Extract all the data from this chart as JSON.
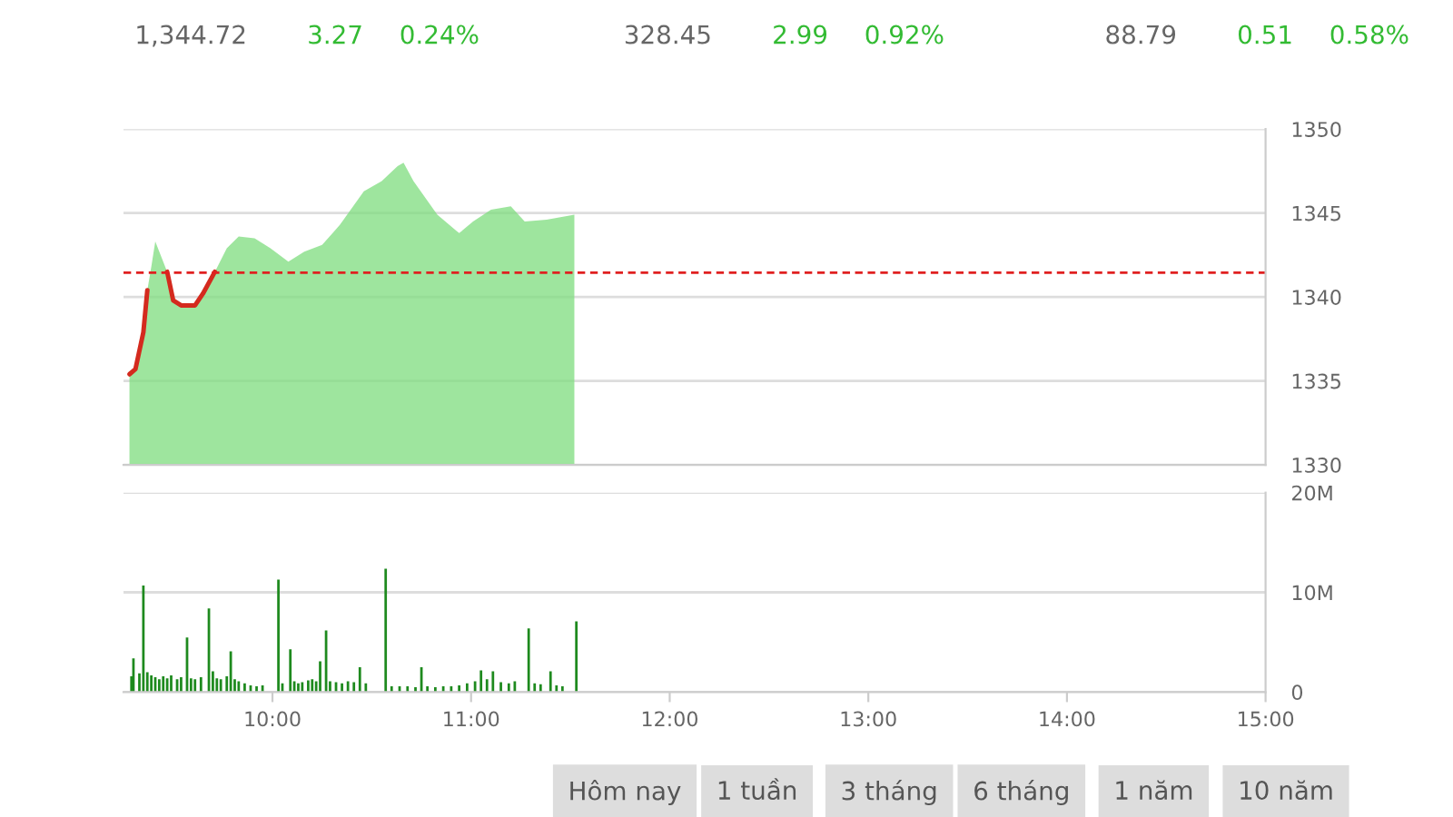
{
  "chart_data": [
    {
      "type": "area",
      "xlim": [
        9.25,
        15
      ],
      "ylim": [
        1330,
        1350
      ],
      "yticks": [
        1330,
        1335,
        1340,
        1345,
        1350
      ],
      "tick_labels": "y",
      "grid": "y",
      "legend": false,
      "x": [
        9.28,
        9.31,
        9.35,
        9.37,
        9.39,
        9.41,
        9.44,
        9.47,
        9.5,
        9.54,
        9.61,
        9.65,
        9.71,
        9.77,
        9.83,
        9.91,
        9.99,
        10.08,
        10.16,
        10.25,
        10.34,
        10.46,
        10.55,
        10.63,
        10.66,
        10.71,
        10.83,
        10.94,
        11.01,
        11.1,
        11.2,
        11.27,
        11.38,
        11.52
      ],
      "series": [
        {
          "type": "area",
          "color": "#7ddc7d",
          "values": [
            1335.4,
            1335.7,
            1337.9,
            1340.4,
            1341.8,
            1343.3,
            1342.4,
            1341.5,
            1339.8,
            1339.5,
            1339.5,
            1340.2,
            1341.5,
            1342.9,
            1343.6,
            1343.5,
            1342.9,
            1342.1,
            1342.7,
            1343.1,
            1344.3,
            1346.3,
            1346.9,
            1347.8,
            1348.0,
            1346.9,
            1344.9,
            1343.8,
            1344.5,
            1345.2,
            1345.4,
            1344.5,
            1344.6,
            1344.9
          ]
        },
        {
          "type": "line",
          "color": "#d42a1e",
          "values": [
            1335.4,
            1335.7,
            1337.9,
            1340.4,
            null,
            null,
            null,
            1341.5,
            1339.8,
            1339.5,
            1339.5,
            1340.2,
            1341.5,
            null,
            null,
            null,
            null,
            null,
            null,
            null,
            null,
            null,
            null,
            null,
            null,
            null,
            null,
            null,
            null,
            null,
            null,
            null,
            null,
            null
          ]
        }
      ],
      "ref_lines": [
        {
          "axis": "y",
          "value": 1341.45,
          "color": "#e02020",
          "line_style": "dashed"
        }
      ],
      "annotations": [
        "1,344.72",
        "3.27",
        "0.24%",
        "328.45",
        "2.99",
        "0.92%",
        "88.79",
        "0.51",
        "0.58%"
      ]
    },
    {
      "type": "bar",
      "xlim": [
        9.25,
        15
      ],
      "ylim": [
        0,
        20
      ],
      "grid": "y",
      "legend": false,
      "xticks": [
        {
          "value": 10,
          "label": "10:00"
        },
        {
          "value": 11,
          "label": "11:00"
        },
        {
          "value": 12,
          "label": "12:00"
        },
        {
          "value": 13,
          "label": "13:00"
        },
        {
          "value": 14,
          "label": "14:00"
        },
        {
          "value": 15,
          "label": "15:00"
        }
      ],
      "yticks": [
        0,
        {
          "value": 10,
          "label": "10M"
        },
        {
          "value": 20,
          "label": "20M"
        }
      ],
      "x": [
        9.29,
        9.3,
        9.33,
        9.35,
        9.37,
        9.39,
        9.41,
        9.43,
        9.45,
        9.47,
        9.49,
        9.52,
        9.54,
        9.57,
        9.59,
        9.61,
        9.64,
        9.68,
        9.7,
        9.72,
        9.74,
        9.77,
        9.79,
        9.81,
        9.83,
        9.86,
        9.89,
        9.92,
        9.95,
        10.03,
        10.05,
        10.09,
        10.11,
        10.13,
        10.15,
        10.18,
        10.2,
        10.22,
        10.24,
        10.27,
        10.29,
        10.32,
        10.35,
        10.38,
        10.41,
        10.44,
        10.47,
        10.57,
        10.6,
        10.64,
        10.68,
        10.72,
        10.75,
        10.78,
        10.82,
        10.86,
        10.9,
        10.94,
        10.98,
        11.02,
        11.05,
        11.08,
        11.11,
        11.15,
        11.19,
        11.22,
        11.29,
        11.32,
        11.35,
        11.4,
        11.43,
        11.46,
        11.53
      ],
      "series": [
        {
          "color": "#1e8a1e",
          "values": [
            1.5,
            3.3,
            1.8,
            10.6,
            1.9,
            1.6,
            1.4,
            1.2,
            1.5,
            1.3,
            1.6,
            1.2,
            1.4,
            5.4,
            1.3,
            1.2,
            1.4,
            8.3,
            2.0,
            1.3,
            1.2,
            1.5,
            4.0,
            1.2,
            1.0,
            0.8,
            0.6,
            0.5,
            0.6,
            11.2,
            0.8,
            4.2,
            1.0,
            0.8,
            0.9,
            1.1,
            1.2,
            1.0,
            3.0,
            6.1,
            1.0,
            0.9,
            0.8,
            1.0,
            0.9,
            2.4,
            0.8,
            12.3,
            0.5,
            0.5,
            0.5,
            0.4,
            2.4,
            0.5,
            0.4,
            0.5,
            0.5,
            0.6,
            0.8,
            1.0,
            2.1,
            1.2,
            2.0,
            0.9,
            0.8,
            1.0,
            6.3,
            0.8,
            0.7,
            2.0,
            0.6,
            0.5,
            7.0
          ]
        }
      ],
      "annotations": [
        "Hôm nay",
        "1 tuần",
        "3 tháng",
        "6 tháng",
        "1 năm",
        "10 năm"
      ]
    }
  ]
}
